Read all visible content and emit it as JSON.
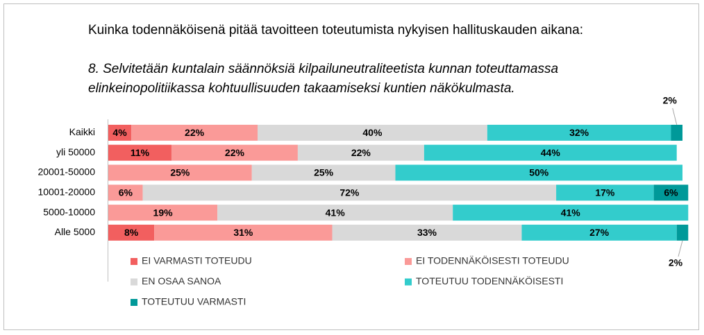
{
  "chart_data": {
    "type": "stacked-bar-horizontal",
    "title": "Kuinka todennäköisenä pitää tavoitteen toteutumista nykyisen hallituskauden aikana:",
    "subtitle": "8. Selvitetään kuntalain säännöksiä kilpailuneutraliteetista kunnan  toteuttamassa elinkeinopolitiikassa kohtuullisuuden takaamiseksi kuntien  näkökulmasta.",
    "categories": [
      "Kaikki",
      "yli 50000",
      "20001-50000",
      "10001-20000",
      "5000-10000",
      "Alle 5000"
    ],
    "xlim": [
      0,
      100
    ],
    "series": [
      {
        "name": "EI VARMASTI TOTEUDU",
        "color": "#f25f5f",
        "values": [
          4,
          11,
          null,
          null,
          null,
          8
        ],
        "value_labels": [
          "4%",
          "11%",
          null,
          null,
          null,
          "8%"
        ]
      },
      {
        "name": "EI TODENNÄKÖISESTI TOTEUDU",
        "color": "#fa9a98",
        "values": [
          22,
          22,
          25,
          6,
          19,
          31
        ],
        "value_labels": [
          "22%",
          "22%",
          "25%",
          "6%",
          "19%",
          "31%"
        ]
      },
      {
        "name": "EN OSAA SANOA",
        "color": "#d9d9d9",
        "values": [
          40,
          22,
          25,
          72,
          41,
          33
        ],
        "value_labels": [
          "40%",
          "22%",
          "25%",
          "72%",
          "41%",
          "33%"
        ]
      },
      {
        "name": "TOTEUTUU TODENNÄKÖISESTI",
        "color": "#33cccc",
        "values": [
          32,
          44,
          50,
          17,
          41,
          27
        ],
        "value_labels": [
          "32%",
          "44%",
          "50%",
          "17%",
          "41%",
          "27%"
        ]
      },
      {
        "name": "TOTEUTUU VARMASTI",
        "color": "#009999",
        "values": [
          2,
          null,
          null,
          6,
          null,
          2
        ],
        "value_labels": [
          "2%",
          null,
          null,
          "6%",
          null,
          "2%"
        ]
      }
    ]
  }
}
